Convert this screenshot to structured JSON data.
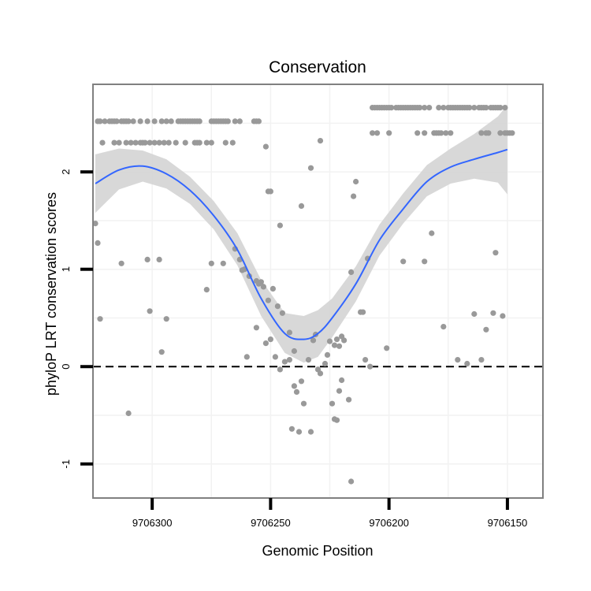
{
  "chart_data": {
    "type": "scatter",
    "title": "Conservation",
    "xlabel": "Genomic Position",
    "ylabel": "phyloP LRT conservation scores",
    "x_reversed": true,
    "xlim": [
      9706325,
      9706135
    ],
    "ylim": [
      -1.35,
      2.9
    ],
    "xticks": [
      9706300,
      9706250,
      9706200,
      9706150
    ],
    "xtick_labels": [
      "9706300",
      "9706250",
      "9706200",
      "9706150"
    ],
    "yticks": [
      -1,
      0,
      1,
      2
    ],
    "ytick_labels": [
      "-1",
      "0",
      "1",
      "2"
    ],
    "grid": true,
    "reference_line": {
      "y": 0,
      "style": "dashed"
    },
    "colors": {
      "points": "#999999",
      "smooth": "#3366ff",
      "ribbon": "#d4d4d4",
      "border": "#808080",
      "grid": "#f2f2f2"
    },
    "points": [
      {
        "x": 9706323,
        "y": 2.52
      },
      {
        "x": 9706322,
        "y": 2.52
      },
      {
        "x": 9706320,
        "y": 2.52
      },
      {
        "x": 9706318,
        "y": 2.52
      },
      {
        "x": 9706317,
        "y": 2.52
      },
      {
        "x": 9706316,
        "y": 2.52
      },
      {
        "x": 9706315,
        "y": 2.52
      },
      {
        "x": 9706313,
        "y": 2.52
      },
      {
        "x": 9706312,
        "y": 2.52
      },
      {
        "x": 9706311,
        "y": 2.52
      },
      {
        "x": 9706310,
        "y": 2.52
      },
      {
        "x": 9706308,
        "y": 2.52
      },
      {
        "x": 9706305,
        "y": 2.52
      },
      {
        "x": 9706302,
        "y": 2.52
      },
      {
        "x": 9706299,
        "y": 2.52
      },
      {
        "x": 9706296,
        "y": 2.52
      },
      {
        "x": 9706294,
        "y": 2.52
      },
      {
        "x": 9706292,
        "y": 2.52
      },
      {
        "x": 9706289,
        "y": 2.52
      },
      {
        "x": 9706288,
        "y": 2.52
      },
      {
        "x": 9706287,
        "y": 2.52
      },
      {
        "x": 9706286,
        "y": 2.52
      },
      {
        "x": 9706285,
        "y": 2.52
      },
      {
        "x": 9706284,
        "y": 2.52
      },
      {
        "x": 9706283,
        "y": 2.52
      },
      {
        "x": 9706282,
        "y": 2.52
      },
      {
        "x": 9706281,
        "y": 2.52
      },
      {
        "x": 9706280,
        "y": 2.52
      },
      {
        "x": 9706275,
        "y": 2.52
      },
      {
        "x": 9706274,
        "y": 2.52
      },
      {
        "x": 9706273,
        "y": 2.52
      },
      {
        "x": 9706272,
        "y": 2.52
      },
      {
        "x": 9706271,
        "y": 2.52
      },
      {
        "x": 9706270,
        "y": 2.52
      },
      {
        "x": 9706269,
        "y": 2.52
      },
      {
        "x": 9706268,
        "y": 2.52
      },
      {
        "x": 9706265,
        "y": 2.52
      },
      {
        "x": 9706263,
        "y": 2.52
      },
      {
        "x": 9706257,
        "y": 2.52
      },
      {
        "x": 9706256,
        "y": 2.52
      },
      {
        "x": 9706255,
        "y": 2.52
      },
      {
        "x": 9706321,
        "y": 2.3
      },
      {
        "x": 9706316,
        "y": 2.3
      },
      {
        "x": 9706314,
        "y": 2.3
      },
      {
        "x": 9706311,
        "y": 2.3
      },
      {
        "x": 9706309,
        "y": 2.3
      },
      {
        "x": 9706307,
        "y": 2.3
      },
      {
        "x": 9706305,
        "y": 2.3
      },
      {
        "x": 9706304,
        "y": 2.3
      },
      {
        "x": 9706303,
        "y": 2.3
      },
      {
        "x": 9706301,
        "y": 2.3
      },
      {
        "x": 9706299,
        "y": 2.3
      },
      {
        "x": 9706297,
        "y": 2.3
      },
      {
        "x": 9706295,
        "y": 2.3
      },
      {
        "x": 9706293,
        "y": 2.3
      },
      {
        "x": 9706290,
        "y": 2.3
      },
      {
        "x": 9706286,
        "y": 2.3
      },
      {
        "x": 9706282,
        "y": 2.3
      },
      {
        "x": 9706281,
        "y": 2.3
      },
      {
        "x": 9706280,
        "y": 2.3
      },
      {
        "x": 9706277,
        "y": 2.3
      },
      {
        "x": 9706275,
        "y": 2.3
      },
      {
        "x": 9706269,
        "y": 2.3
      },
      {
        "x": 9706266,
        "y": 2.3
      },
      {
        "x": 9706252,
        "y": 2.26
      },
      {
        "x": 9706229,
        "y": 2.32
      },
      {
        "x": 9706233,
        "y": 2.04
      },
      {
        "x": 9706251,
        "y": 1.8
      },
      {
        "x": 9706250,
        "y": 1.8
      },
      {
        "x": 9706246,
        "y": 1.45
      },
      {
        "x": 9706237,
        "y": 1.65
      },
      {
        "x": 9706214,
        "y": 1.9
      },
      {
        "x": 9706215,
        "y": 1.75
      },
      {
        "x": 9706324,
        "y": 1.47
      },
      {
        "x": 9706323,
        "y": 1.27
      },
      {
        "x": 9706313,
        "y": 1.06
      },
      {
        "x": 9706302,
        "y": 1.1
      },
      {
        "x": 9706297,
        "y": 1.1
      },
      {
        "x": 9706322,
        "y": 0.49
      },
      {
        "x": 9706294,
        "y": 0.49
      },
      {
        "x": 9706301,
        "y": 0.57
      },
      {
        "x": 9706296,
        "y": 0.15
      },
      {
        "x": 9706310,
        "y": -0.48
      },
      {
        "x": 9706277,
        "y": 0.79
      },
      {
        "x": 9706275,
        "y": 1.06
      },
      {
        "x": 9706270,
        "y": 1.06
      },
      {
        "x": 9706265,
        "y": 1.21
      },
      {
        "x": 9706263,
        "y": 1.1
      },
      {
        "x": 9706261,
        "y": 1.0
      },
      {
        "x": 9706259,
        "y": 0.93
      },
      {
        "x": 9706262,
        "y": 0.99
      },
      {
        "x": 9706256,
        "y": 0.88
      },
      {
        "x": 9706255,
        "y": 0.85
      },
      {
        "x": 9706254,
        "y": 0.87
      },
      {
        "x": 9706253,
        "y": 0.82
      },
      {
        "x": 9706251,
        "y": 0.68
      },
      {
        "x": 9706249,
        "y": 0.8
      },
      {
        "x": 9706247,
        "y": 0.62
      },
      {
        "x": 9706245,
        "y": 0.55
      },
      {
        "x": 9706242,
        "y": 0.35
      },
      {
        "x": 9706260,
        "y": 0.1
      },
      {
        "x": 9706256,
        "y": 0.4
      },
      {
        "x": 9706252,
        "y": 0.24
      },
      {
        "x": 9706250,
        "y": 0.28
      },
      {
        "x": 9706248,
        "y": 0.1
      },
      {
        "x": 9706246,
        "y": -0.03
      },
      {
        "x": 9706242,
        "y": 0.07
      },
      {
        "x": 9706244,
        "y": 0.05
      },
      {
        "x": 9706240,
        "y": -0.2
      },
      {
        "x": 9706239,
        "y": -0.26
      },
      {
        "x": 9706237,
        "y": -0.15
      },
      {
        "x": 9706236,
        "y": -0.38
      },
      {
        "x": 9706241,
        "y": -0.64
      },
      {
        "x": 9706238,
        "y": -0.67
      },
      {
        "x": 9706233,
        "y": -0.67
      },
      {
        "x": 9706240,
        "y": 0.16
      },
      {
        "x": 9706232,
        "y": 0.27
      },
      {
        "x": 9706231,
        "y": 0.33
      },
      {
        "x": 9706234,
        "y": 0.07
      },
      {
        "x": 9706230,
        "y": -0.03
      },
      {
        "x": 9706229,
        "y": -0.07
      },
      {
        "x": 9706226,
        "y": 0.12
      },
      {
        "x": 9706227,
        "y": 0.03
      },
      {
        "x": 9706225,
        "y": 0.26
      },
      {
        "x": 9706222,
        "y": 0.28
      },
      {
        "x": 9706221,
        "y": 0.21
      },
      {
        "x": 9706220,
        "y": 0.31
      },
      {
        "x": 9706219,
        "y": 0.27
      },
      {
        "x": 9706223,
        "y": 0.22
      },
      {
        "x": 9706224,
        "y": -0.38
      },
      {
        "x": 9706223,
        "y": -0.54
      },
      {
        "x": 9706222,
        "y": -0.55
      },
      {
        "x": 9706221,
        "y": -0.25
      },
      {
        "x": 9706220,
        "y": -0.14
      },
      {
        "x": 9706217,
        "y": -0.34
      },
      {
        "x": 9706216,
        "y": -1.18
      },
      {
        "x": 9706216,
        "y": 0.97
      },
      {
        "x": 9706212,
        "y": 0.56
      },
      {
        "x": 9706211,
        "y": 0.56
      },
      {
        "x": 9706209,
        "y": 1.11
      },
      {
        "x": 9706210,
        "y": 0.07
      },
      {
        "x": 9706208,
        "y": 0.0
      },
      {
        "x": 9706201,
        "y": 0.19
      },
      {
        "x": 9706207,
        "y": 2.66
      },
      {
        "x": 9706206,
        "y": 2.66
      },
      {
        "x": 9706205,
        "y": 2.66
      },
      {
        "x": 9706204,
        "y": 2.66
      },
      {
        "x": 9706203,
        "y": 2.66
      },
      {
        "x": 9706202,
        "y": 2.66
      },
      {
        "x": 9706201,
        "y": 2.66
      },
      {
        "x": 9706200,
        "y": 2.66
      },
      {
        "x": 9706199,
        "y": 2.66
      },
      {
        "x": 9706197,
        "y": 2.66
      },
      {
        "x": 9706196,
        "y": 2.66
      },
      {
        "x": 9706195,
        "y": 2.66
      },
      {
        "x": 9706194,
        "y": 2.66
      },
      {
        "x": 9706193,
        "y": 2.66
      },
      {
        "x": 9706192,
        "y": 2.66
      },
      {
        "x": 9706191,
        "y": 2.66
      },
      {
        "x": 9706190,
        "y": 2.66
      },
      {
        "x": 9706189,
        "y": 2.66
      },
      {
        "x": 9706188,
        "y": 2.66
      },
      {
        "x": 9706187,
        "y": 2.66
      },
      {
        "x": 9706185,
        "y": 2.66
      },
      {
        "x": 9706183,
        "y": 2.66
      },
      {
        "x": 9706179,
        "y": 2.66
      },
      {
        "x": 9706177,
        "y": 2.66
      },
      {
        "x": 9706175,
        "y": 2.66
      },
      {
        "x": 9706174,
        "y": 2.66
      },
      {
        "x": 9706173,
        "y": 2.66
      },
      {
        "x": 9706172,
        "y": 2.66
      },
      {
        "x": 9706171,
        "y": 2.66
      },
      {
        "x": 9706170,
        "y": 2.66
      },
      {
        "x": 9706169,
        "y": 2.66
      },
      {
        "x": 9706168,
        "y": 2.66
      },
      {
        "x": 9706167,
        "y": 2.66
      },
      {
        "x": 9706166,
        "y": 2.66
      },
      {
        "x": 9706164,
        "y": 2.66
      },
      {
        "x": 9706162,
        "y": 2.66
      },
      {
        "x": 9706161,
        "y": 2.66
      },
      {
        "x": 9706160,
        "y": 2.66
      },
      {
        "x": 9706159,
        "y": 2.66
      },
      {
        "x": 9706157,
        "y": 2.66
      },
      {
        "x": 9706156,
        "y": 2.66
      },
      {
        "x": 9706155,
        "y": 2.66
      },
      {
        "x": 9706154,
        "y": 2.66
      },
      {
        "x": 9706153,
        "y": 2.66
      },
      {
        "x": 9706151,
        "y": 2.66
      },
      {
        "x": 9706207,
        "y": 2.4
      },
      {
        "x": 9706205,
        "y": 2.4
      },
      {
        "x": 9706200,
        "y": 2.4
      },
      {
        "x": 9706188,
        "y": 2.4
      },
      {
        "x": 9706185,
        "y": 2.4
      },
      {
        "x": 9706181,
        "y": 2.4
      },
      {
        "x": 9706180,
        "y": 2.4
      },
      {
        "x": 9706179,
        "y": 2.4
      },
      {
        "x": 9706178,
        "y": 2.4
      },
      {
        "x": 9706176,
        "y": 2.4
      },
      {
        "x": 9706174,
        "y": 2.4
      },
      {
        "x": 9706161,
        "y": 2.4
      },
      {
        "x": 9706159,
        "y": 2.4
      },
      {
        "x": 9706158,
        "y": 2.4
      },
      {
        "x": 9706153,
        "y": 2.4
      },
      {
        "x": 9706151,
        "y": 2.4
      },
      {
        "x": 9706150,
        "y": 2.4
      },
      {
        "x": 9706149,
        "y": 2.4
      },
      {
        "x": 9706148,
        "y": 2.4
      },
      {
        "x": 9706182,
        "y": 1.37
      },
      {
        "x": 9706185,
        "y": 1.08
      },
      {
        "x": 9706194,
        "y": 1.08
      },
      {
        "x": 9706155,
        "y": 1.17
      },
      {
        "x": 9706177,
        "y": 0.41
      },
      {
        "x": 9706159,
        "y": 0.38
      },
      {
        "x": 9706164,
        "y": 0.54
      },
      {
        "x": 9706156,
        "y": 0.55
      },
      {
        "x": 9706152,
        "y": 0.52
      },
      {
        "x": 9706171,
        "y": 0.07
      },
      {
        "x": 9706167,
        "y": 0.03
      },
      {
        "x": 9706161,
        "y": 0.07
      }
    ],
    "smooth_x": [
      9706324,
      9706314,
      9706304,
      9706294,
      9706284,
      9706274,
      9706264,
      9706254,
      9706244,
      9706236,
      9706230,
      9706224,
      9706214,
      9706204,
      9706194,
      9706184,
      9706174,
      9706164,
      9706154,
      9706150
    ],
    "smooth_y": [
      1.88,
      2.02,
      2.06,
      1.98,
      1.81,
      1.55,
      1.2,
      0.7,
      0.34,
      0.28,
      0.34,
      0.5,
      0.85,
      1.3,
      1.62,
      1.9,
      2.05,
      2.13,
      2.2,
      2.23
    ],
    "smooth_lower": [
      1.58,
      1.82,
      1.9,
      1.83,
      1.67,
      1.41,
      1.04,
      0.52,
      0.14,
      0.04,
      0.1,
      0.3,
      0.67,
      1.14,
      1.47,
      1.75,
      1.88,
      1.93,
      1.89,
      1.77
    ],
    "smooth_upper": [
      2.18,
      2.24,
      2.22,
      2.13,
      1.95,
      1.7,
      1.37,
      0.89,
      0.55,
      0.52,
      0.58,
      0.7,
      1.03,
      1.46,
      1.78,
      2.07,
      2.24,
      2.39,
      2.57,
      2.69
    ]
  }
}
